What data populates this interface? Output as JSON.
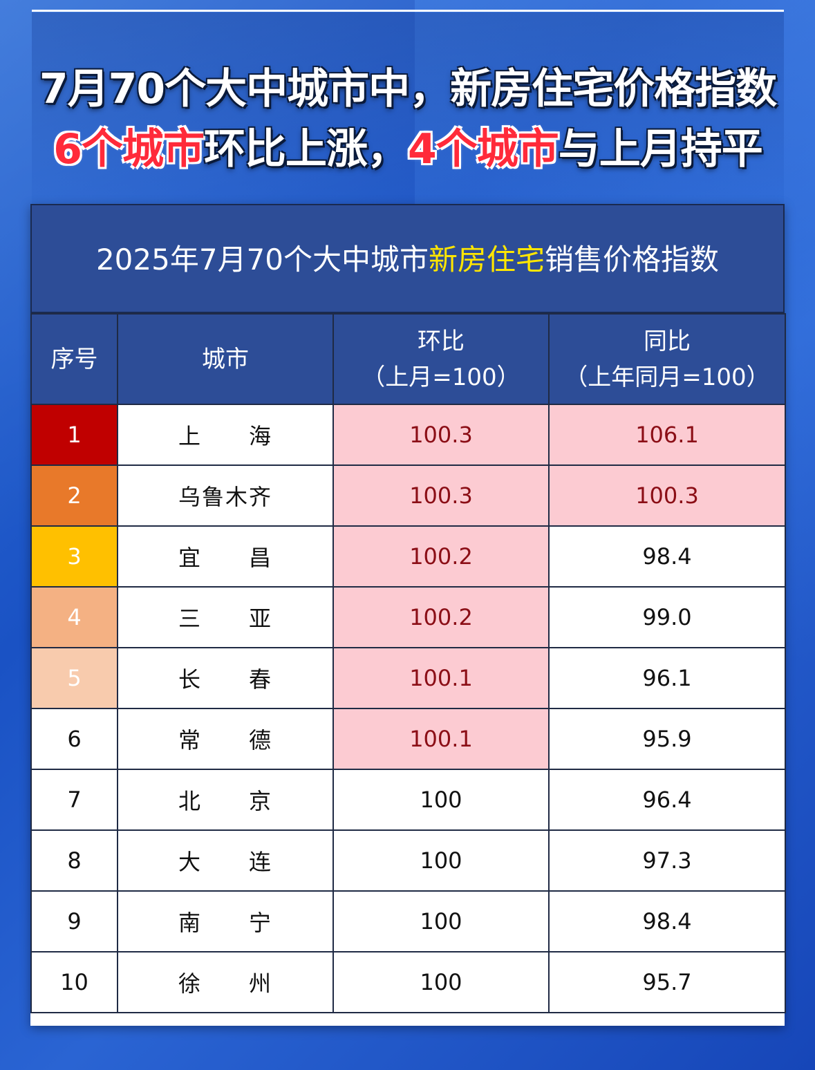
{
  "headline": {
    "line1": "7月70个大中城市中，新房住宅价格指数",
    "line2_red_a": "6个城市",
    "line2_white_a": "环比上涨，",
    "line2_red_b": "4个城市",
    "line2_white_b": "与上月持平"
  },
  "table": {
    "title_prefix": "2025年7月70个大中城市",
    "title_highlight": "新房住宅",
    "title_suffix": "销售价格指数",
    "highlight_color": "#fccbd2",
    "rank_colors": [
      "#c00000",
      "#e8792a",
      "#ffc000",
      "#f4b183",
      "#f8cbad"
    ]
  },
  "chart_data": {
    "type": "table",
    "title": "2025年7月70个大中城市新房住宅销售价格指数",
    "columns": [
      {
        "label": "序号",
        "sub": ""
      },
      {
        "label": "城市",
        "sub": ""
      },
      {
        "label": "环比",
        "sub": "（上月=100）"
      },
      {
        "label": "同比",
        "sub": "（上年同月=100）"
      }
    ],
    "rows": [
      {
        "rank": "1",
        "city": "上　　海",
        "mom": "100.3",
        "yoy": "106.1"
      },
      {
        "rank": "2",
        "city": "乌鲁木齐",
        "mom": "100.3",
        "yoy": "100.3"
      },
      {
        "rank": "3",
        "city": "宜　　昌",
        "mom": "100.2",
        "yoy": "98.4"
      },
      {
        "rank": "4",
        "city": "三　　亚",
        "mom": "100.2",
        "yoy": "99.0"
      },
      {
        "rank": "5",
        "city": "长　　春",
        "mom": "100.1",
        "yoy": "96.1"
      },
      {
        "rank": "6",
        "city": "常　　德",
        "mom": "100.1",
        "yoy": "95.9"
      },
      {
        "rank": "7",
        "city": "北　　京",
        "mom": "100",
        "yoy": "96.4"
      },
      {
        "rank": "8",
        "city": "大　　连",
        "mom": "100",
        "yoy": "97.3"
      },
      {
        "rank": "9",
        "city": "南　　宁",
        "mom": "100",
        "yoy": "98.4"
      },
      {
        "rank": "10",
        "city": "徐　　州",
        "mom": "100",
        "yoy": "95.7"
      }
    ]
  }
}
